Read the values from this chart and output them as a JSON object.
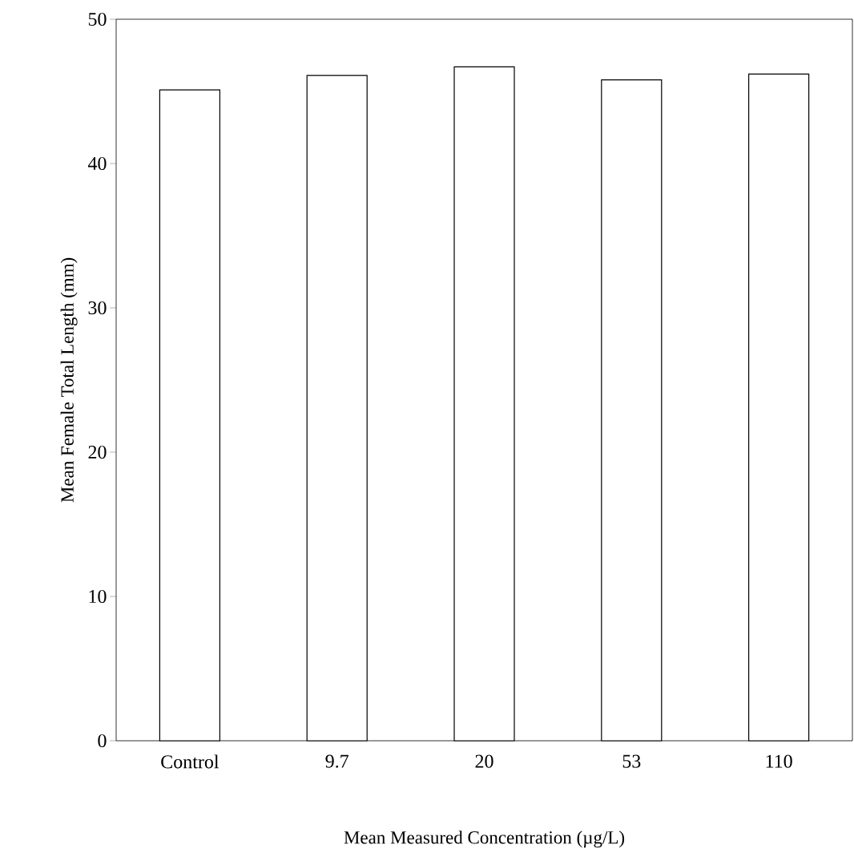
{
  "chart_data": {
    "type": "bar",
    "xlabel": "Mean Measured Concentration (µg/L)",
    "ylabel": "Mean  Female Total Length (mm)",
    "categories": [
      "Control",
      "9.7",
      "20",
      "53",
      "110"
    ],
    "values": [
      45.1,
      46.1,
      46.7,
      45.8,
      46.2
    ],
    "color": "#000000",
    "ylim": [
      0,
      50
    ],
    "yticks": [
      0,
      10,
      20,
      30,
      40,
      50
    ]
  }
}
